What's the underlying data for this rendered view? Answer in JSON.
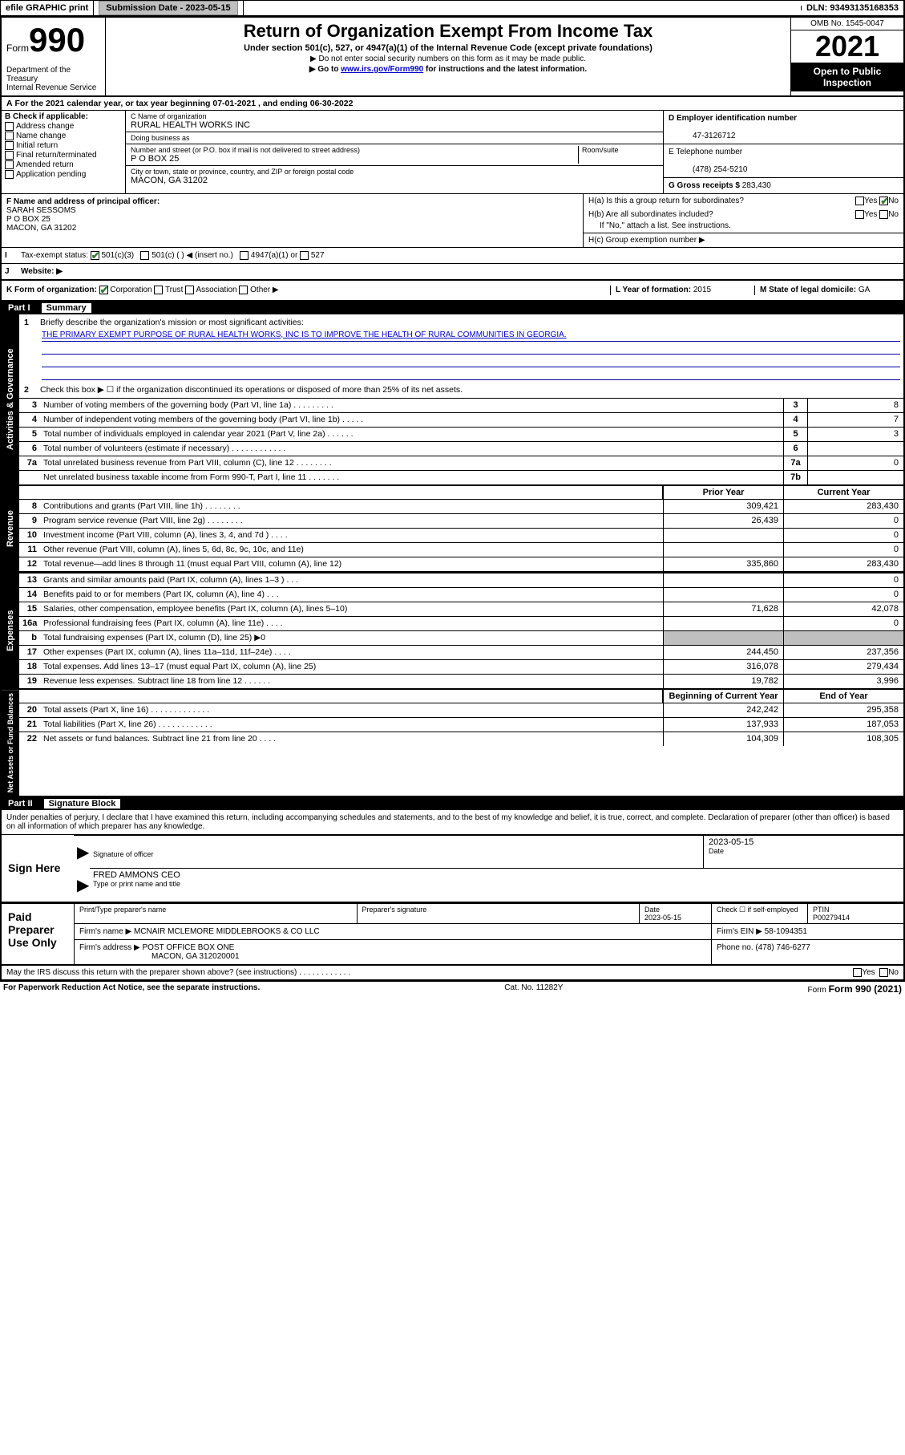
{
  "top": {
    "efile": "efile GRAPHIC print",
    "submission_label": "Submission Date - 2023-05-15",
    "dln": "DLN: 93493135168353"
  },
  "header": {
    "form_prefix": "Form",
    "form_num": "990",
    "title": "Return of Organization Exempt From Income Tax",
    "subtitle": "Under section 501(c), 527, or 4947(a)(1) of the Internal Revenue Code (except private foundations)",
    "note1": "▶ Do not enter social security numbers on this form as it may be made public.",
    "note2_pre": "▶ Go to ",
    "note2_link": "www.irs.gov/Form990",
    "note2_post": " for instructions and the latest information.",
    "omb": "OMB No. 1545-0047",
    "year": "2021",
    "open_public": "Open to Public Inspection",
    "dept": "Department of the Treasury",
    "irs": "Internal Revenue Service"
  },
  "a_line": "For the 2021 calendar year, or tax year beginning 07-01-2021  , and ending 06-30-2022",
  "b": {
    "title": "B Check if applicable:",
    "opts": [
      "Address change",
      "Name change",
      "Initial return",
      "Final return/terminated",
      "Amended return",
      "Application pending"
    ]
  },
  "c": {
    "name_label": "C Name of organization",
    "name": "RURAL HEALTH WORKS INC",
    "dba_label": "Doing business as",
    "dba": "",
    "street_label": "Number and street (or P.O. box if mail is not delivered to street address)",
    "room_label": "Room/suite",
    "street": "P O BOX 25",
    "city_label": "City or town, state or province, country, and ZIP or foreign postal code",
    "city": "MACON, GA  31202"
  },
  "d": {
    "label": "D Employer identification number",
    "val": "47-3126712"
  },
  "e": {
    "label": "E Telephone number",
    "val": "(478) 254-5210"
  },
  "g": {
    "label": "G Gross receipts $",
    "val": "283,430"
  },
  "f": {
    "label": "F Name and address of principal officer:",
    "name": "SARAH SESSOMS",
    "addr1": "P O BOX 25",
    "addr2": "MACON, GA  31202"
  },
  "h": {
    "a": "H(a)  Is this a group return for subordinates?",
    "b": "H(b)  Are all subordinates included?",
    "b_note": "If \"No,\" attach a list. See instructions.",
    "c": "H(c)  Group exemption number ▶",
    "yes": "Yes",
    "no": "No"
  },
  "i": {
    "label": "Tax-exempt status:",
    "c3": "501(c)(3)",
    "c": "501(c) (  ) ◀ (insert no.)",
    "a1": "4947(a)(1) or",
    "527": "527"
  },
  "j": {
    "label": "Website: ▶",
    "val": ""
  },
  "k": {
    "label": "K Form of organization:",
    "corp": "Corporation",
    "trust": "Trust",
    "assoc": "Association",
    "other": "Other ▶"
  },
  "l": {
    "label": "L Year of formation:",
    "val": "2015"
  },
  "m": {
    "label": "M State of legal domicile:",
    "val": "GA"
  },
  "part1": {
    "label": "Part I",
    "title": "Summary"
  },
  "summary": {
    "l1_label": "Briefly describe the organization's mission or most significant activities:",
    "l1_text": "THE PRIMARY EXEMPT PURPOSE OF RURAL HEALTH WORKS, INC IS TO IMPROVE THE HEALTH OF RURAL COMMUNITIES IN GEORGIA.",
    "l2": "Check this box ▶ ☐  if the organization discontinued its operations or disposed of more than 25% of its net assets.",
    "lines_top": [
      {
        "n": "3",
        "t": "Number of voting members of the governing body (Part VI, line 1a)  .    .    .    .    .    .    .    .    .",
        "sn": "3",
        "v": "8"
      },
      {
        "n": "4",
        "t": "Number of independent voting members of the governing body (Part VI, line 1b)  .    .    .    .    .",
        "sn": "4",
        "v": "7"
      },
      {
        "n": "5",
        "t": "Total number of individuals employed in calendar year 2021 (Part V, line 2a)  .    .    .    .    .    .",
        "sn": "5",
        "v": "3"
      },
      {
        "n": "6",
        "t": "Total number of volunteers (estimate if necessary)  .    .    .    .    .    .    .    .    .    .    .    .",
        "sn": "6",
        "v": ""
      },
      {
        "n": "7a",
        "t": "Total unrelated business revenue from Part VIII, column (C), line 12  .    .    .    .    .    .    .    .",
        "sn": "7a",
        "v": "0"
      },
      {
        "n": "",
        "t": "Net unrelated business taxable income from Form 990-T, Part I, line 11  .    .    .    .    .    .    .",
        "sn": "7b",
        "v": ""
      }
    ],
    "col_prior": "Prior Year",
    "col_curr": "Current Year",
    "revenue": [
      {
        "n": "8",
        "t": "Contributions and grants (Part VIII, line 1h)  .    .    .    .    .    .    .    .",
        "p": "309,421",
        "c": "283,430"
      },
      {
        "n": "9",
        "t": "Program service revenue (Part VIII, line 2g)  .    .    .    .    .    .    .    .",
        "p": "26,439",
        "c": "0"
      },
      {
        "n": "10",
        "t": "Investment income (Part VIII, column (A), lines 3, 4, and 7d )  .    .    .    .",
        "p": "",
        "c": "0"
      },
      {
        "n": "11",
        "t": "Other revenue (Part VIII, column (A), lines 5, 6d, 8c, 9c, 10c, and 11e)",
        "p": "",
        "c": "0"
      },
      {
        "n": "12",
        "t": "Total revenue—add lines 8 through 11 (must equal Part VIII, column (A), line 12)",
        "p": "335,860",
        "c": "283,430"
      }
    ],
    "expenses": [
      {
        "n": "13",
        "t": "Grants and similar amounts paid (Part IX, column (A), lines 1–3 )  .    .    .",
        "p": "",
        "c": "0"
      },
      {
        "n": "14",
        "t": "Benefits paid to or for members (Part IX, column (A), line 4)  .    .    .",
        "p": "",
        "c": "0"
      },
      {
        "n": "15",
        "t": "Salaries, other compensation, employee benefits (Part IX, column (A), lines 5–10)",
        "p": "71,628",
        "c": "42,078"
      },
      {
        "n": "16a",
        "t": "Professional fundraising fees (Part IX, column (A), line 11e)  .    .    .    .",
        "p": "",
        "c": "0"
      },
      {
        "n": "b",
        "t": "Total fundraising expenses (Part IX, column (D), line 25) ▶0",
        "p": "grey",
        "c": "grey"
      },
      {
        "n": "17",
        "t": "Other expenses (Part IX, column (A), lines 11a–11d, 11f–24e)  .    .    .    .",
        "p": "244,450",
        "c": "237,356"
      },
      {
        "n": "18",
        "t": "Total expenses. Add lines 13–17 (must equal Part IX, column (A), line 25)",
        "p": "316,078",
        "c": "279,434"
      },
      {
        "n": "19",
        "t": "Revenue less expenses. Subtract line 18 from line 12  .    .    .    .    .    .",
        "p": "19,782",
        "c": "3,996"
      }
    ],
    "col_begin": "Beginning of Current Year",
    "col_end": "End of Year",
    "netassets": [
      {
        "n": "20",
        "t": "Total assets (Part X, line 16)  .    .    .    .    .    .    .    .    .    .    .    .    .",
        "p": "242,242",
        "c": "295,358"
      },
      {
        "n": "21",
        "t": "Total liabilities (Part X, line 26)  .    .    .    .    .    .    .    .    .    .    .    .",
        "p": "137,933",
        "c": "187,053"
      },
      {
        "n": "22",
        "t": "Net assets or fund balances. Subtract line 21 from line 20  .    .    .    .",
        "p": "104,309",
        "c": "108,305"
      }
    ],
    "side_act": "Activities & Governance",
    "side_rev": "Revenue",
    "side_exp": "Expenses",
    "side_net": "Net Assets or Fund Balances"
  },
  "part2": {
    "label": "Part II",
    "title": "Signature Block"
  },
  "sig": {
    "penalty": "Under penalties of perjury, I declare that I have examined this return, including accompanying schedules and statements, and to the best of my knowledge and belief, it is true, correct, and complete. Declaration of preparer (other than officer) is based on all information of which preparer has any knowledge.",
    "sign_here": "Sign Here",
    "sig_officer": "Signature of officer",
    "date_label": "Date",
    "date": "2023-05-15",
    "officer_name": "FRED AMMONS CEO",
    "type_name": "Type or print name and title",
    "paid": "Paid Preparer Use Only",
    "print_name_label": "Print/Type preparer's name",
    "prep_sig_label": "Preparer's signature",
    "prep_date_label": "Date",
    "prep_date": "2023-05-15",
    "check_self": "Check ☐ if self-employed",
    "ptin_label": "PTIN",
    "ptin": "P00279414",
    "firm_name_label": "Firm's name    ▶",
    "firm_name": "MCNAIR MCLEMORE MIDDLEBROOKS & CO LLC",
    "firm_ein_label": "Firm's EIN ▶",
    "firm_ein": "58-1094351",
    "firm_addr_label": "Firm's address ▶",
    "firm_addr1": "POST OFFICE BOX ONE",
    "firm_addr2": "MACON, GA  312020001",
    "phone_label": "Phone no.",
    "phone": "(478) 746-6277",
    "discuss": "May the IRS discuss this return with the preparer shown above? (see instructions)  .    .    .    .    .    .    .    .    .    .    .    ."
  },
  "footer": {
    "paperwork": "For Paperwork Reduction Act Notice, see the separate instructions.",
    "cat": "Cat. No. 11282Y",
    "form": "Form 990 (2021)"
  }
}
